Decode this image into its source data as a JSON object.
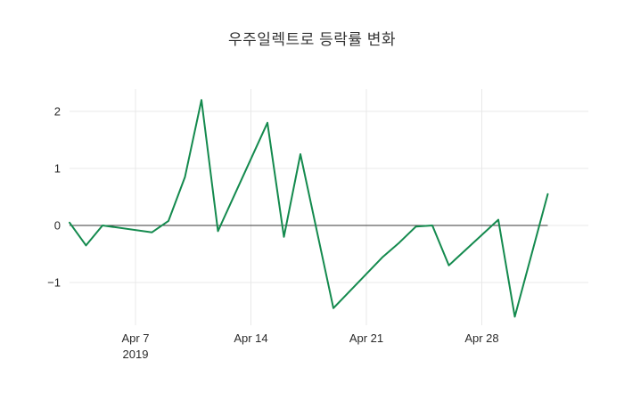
{
  "chart_data": {
    "type": "line",
    "title": "우주일렉트로 등락률 변화",
    "xlabel": "",
    "ylabel": "",
    "grid": true,
    "legend": "none",
    "background": "#ffffff",
    "grid_color": "#e8e8e8",
    "zero_line": true,
    "zero_line_color": "#3a3a3a",
    "tick_color": "#2a2a2a",
    "x_axis": {
      "min": 3,
      "max": 34.46,
      "unit": "date (April 2019, day number; 32 = May 2)"
    },
    "y_axis": {
      "min": -1.75,
      "max": 2.39
    },
    "x_ticks": [
      {
        "d": 7,
        "label": "Apr 7",
        "sublabel": "2019"
      },
      {
        "d": 14,
        "label": "Apr 14"
      },
      {
        "d": 21,
        "label": "Apr 21"
      },
      {
        "d": 28,
        "label": "Apr 28"
      }
    ],
    "y_ticks": [
      {
        "v": -1,
        "label": "−1"
      },
      {
        "v": 0,
        "label": "0"
      },
      {
        "v": 1,
        "label": "1"
      },
      {
        "v": 2,
        "label": "2"
      }
    ],
    "series": [
      {
        "name": "등락률",
        "color": "#148a4e",
        "points": [
          [
            3,
            0.05
          ],
          [
            4,
            -0.35
          ],
          [
            5,
            0.0
          ],
          [
            8,
            -0.12
          ],
          [
            9,
            0.08
          ],
          [
            10,
            0.85
          ],
          [
            11,
            2.2
          ],
          [
            12,
            -0.1
          ],
          [
            15,
            1.8
          ],
          [
            16,
            -0.2
          ],
          [
            17,
            1.25
          ],
          [
            18,
            -0.1
          ],
          [
            19,
            -1.45
          ],
          [
            22,
            -0.55
          ],
          [
            23,
            -0.3
          ],
          [
            24,
            -0.02
          ],
          [
            25,
            0.0
          ],
          [
            26,
            -0.7
          ],
          [
            29,
            0.1
          ],
          [
            30,
            -1.6
          ],
          [
            32,
            0.55
          ]
        ]
      }
    ]
  }
}
